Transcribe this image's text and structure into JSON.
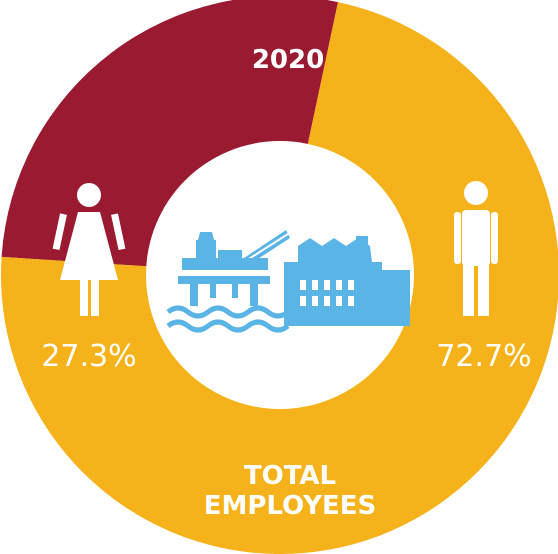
{
  "chart_data": {
    "type": "pie",
    "variant": "donut",
    "year": "2020",
    "center_label_lines": [
      "TOTAL",
      "EMPLOYEES"
    ],
    "slices": [
      {
        "category": "female",
        "value": 27.3,
        "label": "27.3%",
        "color": "#9a1b31",
        "icon": "female-figure-icon"
      },
      {
        "category": "male",
        "value": 72.7,
        "label": "72.7%",
        "color": "#f6b21b",
        "icon": "male-figure-icon"
      }
    ],
    "center_icons": [
      "offshore-oil-rig-icon",
      "factory-building-icon"
    ],
    "icon_color": "#5ab4e5",
    "legend": "none"
  }
}
